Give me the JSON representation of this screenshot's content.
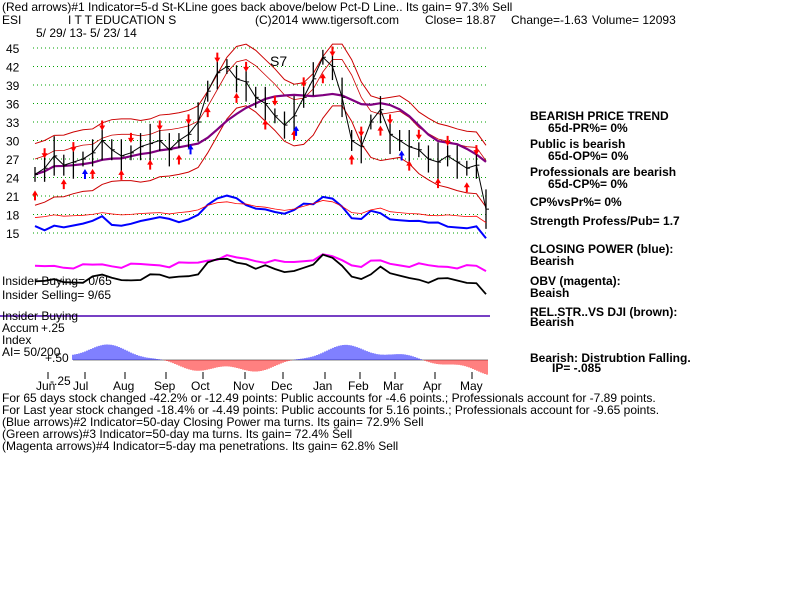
{
  "header": {
    "line1": "(Red arrows)#1 Indicator=5-d St-KLine goes back above/below Pct-D Line.. Its gain= 97.3% Sell",
    "ticker": "ESI",
    "company": "I T T EDUCATION S",
    "copyright": "(C)2014 www.tigersoft.com",
    "close": "Close=  18.87",
    "change": "Change=-1.63",
    "volume": "Volume=  12093",
    "date_range": "5/ 29/ 13-  5/ 23/ 14"
  },
  "chart_data": {
    "type": "line",
    "title": "I T T EDUCATION S",
    "y_ticks": [
      "45",
      "42",
      "39",
      "36",
      "33",
      "30",
      "27",
      "24",
      "21",
      "18",
      "15"
    ],
    "ylim": [
      14,
      47
    ],
    "months": [
      "Jun",
      "Jul",
      "Aug",
      "Sep",
      "Oct",
      "Nov",
      "Dec",
      "Jan",
      "Feb",
      "Mar",
      "Apr",
      "May"
    ],
    "price_approx": [
      24.5,
      25.5,
      27.5,
      26,
      26.5,
      27,
      28,
      30,
      28.5,
      27.5,
      28,
      29,
      29.5,
      30,
      28.5,
      30,
      31,
      33,
      38,
      41,
      42,
      40,
      39.5,
      37,
      36,
      34,
      32.5,
      34,
      37,
      40,
      43.5,
      42,
      37,
      30,
      29,
      33,
      35,
      31,
      30,
      29,
      28.5,
      27,
      26.5,
      27.5,
      26.5,
      25.5,
      26,
      18.87
    ],
    "annotations": [
      "S7"
    ]
  },
  "right_panel": {
    "items": [
      {
        "text": "BEARISH PRICE TREND",
        "bold": true
      },
      {
        "text": "65d-PR%= 0%",
        "bold": true
      },
      {
        "text": "Public is bearish",
        "bold": true
      },
      {
        "text": "65d-OP%= 0%",
        "bold": true
      },
      {
        "text": "Professionals are bearish",
        "bold": true
      },
      {
        "text": "65d-CP%= 0%",
        "bold": true
      },
      {
        "text": "CP%vsPr%=  0%",
        "bold": true
      },
      {
        "text": "Strength Profess/Pub= 1.7",
        "bold": true
      },
      {
        "text": "CLOSING POWER (blue):",
        "bold": true
      },
      {
        "text": "Bearish",
        "bold": true
      },
      {
        "text": "OBV (magenta):",
        "bold": true
      },
      {
        "text": "Beaish",
        "bold": true
      },
      {
        "text": "REL.STR..VS DJI (brown):",
        "bold": true
      },
      {
        "text": "Bearish",
        "bold": true
      },
      {
        "text": "Bearish: Distrubtion Falling.",
        "bold": true
      },
      {
        "text": "IP= -.085",
        "bold": true
      }
    ]
  },
  "insider": {
    "buying1": "Insider Buying= 0/65",
    "selling": "Insider Selling= 9/65",
    "buying2": "Insider Buying",
    "accum": "Accum",
    "plus25": "+.25",
    "index": "Index",
    "plus50": "+.50",
    "ai": "AI= 50/200",
    "minus25": "-.25"
  },
  "footer": {
    "line1": "For 65 days stock changed -42.2% or -12.49 points:  Public accounts for -4.6 points.;  Professionals account for -7.89 points.",
    "line2": "For Last year stock changed -18.4% or -4.49 points:  Public accounts for  5.16 points.;  Professionals account for -9.65 points.",
    "line3": "(Blue arrows)#2 Indicator=50-day Closing Power ma turns. Its gain= 72.9% Sell",
    "line4": "(Green arrows)#3 Indicator=50-day ma turns. Its gain= 72.4% Sell",
    "line5": "(Magenta arrows)#4 Indicator=5-day ma penetrations. Its gain= 62.8% Sell"
  },
  "colors": {
    "price": "#000000",
    "red": "#ff0000",
    "dark_red": "#cc0000",
    "purple": "#800080",
    "blue": "#0000ff",
    "magenta": "#ff00ff",
    "grid": "#00a000"
  }
}
